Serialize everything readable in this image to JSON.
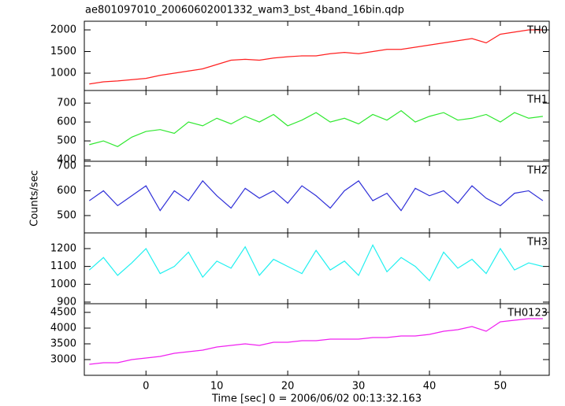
{
  "chart_data": [
    {
      "type": "line",
      "title": "ae801097010_20060602001332_wam3_bst_4band_16bin.qdp",
      "label": "TH0",
      "color": "#ff2020",
      "x": [
        -8,
        -6,
        -4,
        -2,
        0,
        2,
        4,
        6,
        8,
        10,
        12,
        14,
        16,
        18,
        20,
        22,
        24,
        26,
        28,
        30,
        32,
        34,
        36,
        38,
        40,
        42,
        44,
        46,
        48,
        50,
        52,
        54,
        56
      ],
      "values": [
        750,
        800,
        820,
        850,
        880,
        950,
        1000,
        1050,
        1100,
        1200,
        1300,
        1320,
        1300,
        1350,
        1380,
        1400,
        1400,
        1450,
        1480,
        1450,
        1500,
        1550,
        1550,
        1600,
        1650,
        1700,
        1750,
        1800,
        1700,
        1900,
        1950,
        2000,
        2000
      ],
      "xlim": [
        -8.7,
        56.9
      ],
      "ylim": [
        600,
        2200
      ],
      "yticks": [
        1000,
        1500,
        2000
      ]
    },
    {
      "type": "line",
      "label": "TH1",
      "color": "#30e830",
      "x": [
        -8,
        -6,
        -4,
        -2,
        0,
        2,
        4,
        6,
        8,
        10,
        12,
        14,
        16,
        18,
        20,
        22,
        24,
        26,
        28,
        30,
        32,
        34,
        36,
        38,
        40,
        42,
        44,
        46,
        48,
        50,
        52,
        54,
        56
      ],
      "values": [
        480,
        500,
        470,
        520,
        550,
        560,
        540,
        600,
        580,
        620,
        590,
        630,
        600,
        640,
        580,
        610,
        650,
        600,
        620,
        590,
        640,
        610,
        660,
        600,
        630,
        650,
        610,
        620,
        640,
        600,
        650,
        620,
        630
      ],
      "xlim": [
        -8.7,
        56.9
      ],
      "ylim": [
        392,
        767
      ],
      "yticks": [
        400,
        500,
        600,
        700
      ]
    },
    {
      "type": "line",
      "label": "TH2",
      "ylabel": "Counts/sec",
      "color": "#3030d8",
      "x": [
        -8,
        -6,
        -4,
        -2,
        0,
        2,
        4,
        6,
        8,
        10,
        12,
        14,
        16,
        18,
        20,
        22,
        24,
        26,
        28,
        30,
        32,
        34,
        36,
        38,
        40,
        42,
        44,
        46,
        48,
        50,
        52,
        54,
        56
      ],
      "values": [
        560,
        600,
        540,
        580,
        620,
        520,
        600,
        560,
        640,
        580,
        530,
        610,
        570,
        600,
        550,
        620,
        580,
        530,
        600,
        640,
        560,
        590,
        520,
        610,
        580,
        600,
        550,
        620,
        570,
        540,
        590,
        600,
        560
      ],
      "xlim": [
        -8.7,
        56.9
      ],
      "ylim": [
        430,
        719
      ],
      "yticks": [
        500,
        600,
        700
      ]
    },
    {
      "type": "line",
      "label": "TH3",
      "color": "#20f0f0",
      "x": [
        -8,
        -6,
        -4,
        -2,
        0,
        2,
        4,
        6,
        8,
        10,
        12,
        14,
        16,
        18,
        20,
        22,
        24,
        26,
        28,
        30,
        32,
        34,
        36,
        38,
        40,
        42,
        44,
        46,
        48,
        50,
        52,
        54,
        56
      ],
      "values": [
        1080,
        1150,
        1050,
        1120,
        1200,
        1060,
        1100,
        1180,
        1040,
        1130,
        1090,
        1210,
        1050,
        1140,
        1100,
        1060,
        1190,
        1080,
        1130,
        1050,
        1220,
        1070,
        1150,
        1100,
        1020,
        1180,
        1090,
        1140,
        1060,
        1200,
        1080,
        1120,
        1100
      ],
      "xlim": [
        -8.7,
        56.9
      ],
      "ylim": [
        891,
        1288
      ],
      "yticks": [
        900,
        1000,
        1100,
        1200
      ]
    },
    {
      "type": "line",
      "label": "TH0123",
      "xlabel": "Time [sec] 0 = 2006/06/02 00:13:32.163",
      "color": "#f020f0",
      "x": [
        -8,
        -6,
        -4,
        -2,
        0,
        2,
        4,
        6,
        8,
        10,
        12,
        14,
        16,
        18,
        20,
        22,
        24,
        26,
        28,
        30,
        32,
        34,
        36,
        38,
        40,
        42,
        44,
        46,
        48,
        50,
        52,
        54,
        56
      ],
      "values": [
        2850,
        2900,
        2900,
        3000,
        3050,
        3100,
        3200,
        3250,
        3300,
        3400,
        3450,
        3500,
        3450,
        3550,
        3550,
        3600,
        3600,
        3650,
        3650,
        3650,
        3700,
        3700,
        3750,
        3750,
        3800,
        3900,
        3950,
        4050,
        3900,
        4200,
        4250,
        4300,
        4300
      ],
      "xlim": [
        -8.7,
        56.9
      ],
      "ylim": [
        2500,
        4775
      ],
      "yticks": [
        3000,
        3500,
        4000,
        4500
      ],
      "xticks": [
        0,
        10,
        20,
        30,
        40,
        50
      ]
    }
  ]
}
